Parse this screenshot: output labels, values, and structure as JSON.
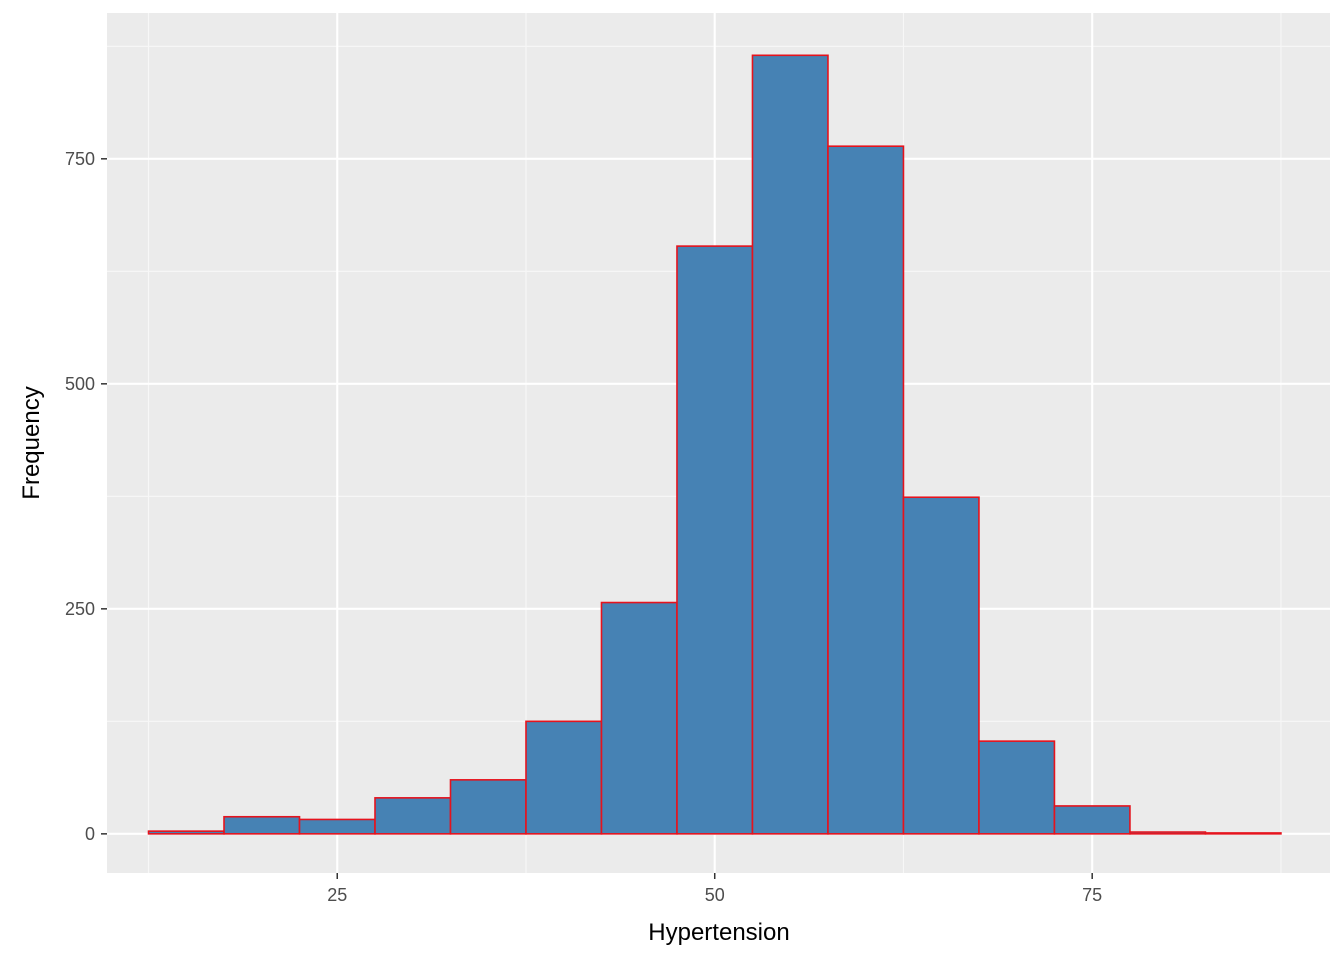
{
  "chart_data": {
    "type": "bar",
    "title": "",
    "xlabel": "Hypertension",
    "ylabel": "Frequency",
    "xlim": [
      9.75,
      90.75
    ],
    "ylim": [
      -43.5,
      912
    ],
    "x_ticks": [
      25,
      50,
      75
    ],
    "x_tick_labels": [
      "25",
      "50",
      "75"
    ],
    "y_ticks": [
      0,
      250,
      500,
      750
    ],
    "y_tick_labels": [
      "0",
      "250",
      "500",
      "750"
    ],
    "x_minor_ticks": [
      12.5,
      37.5,
      62.5,
      87.5
    ],
    "y_minor_ticks": [
      125,
      375,
      625,
      875
    ],
    "bins": [
      {
        "x0": 12.5,
        "x1": 17.5,
        "count": 3
      },
      {
        "x0": 17.5,
        "x1": 22.5,
        "count": 19
      },
      {
        "x0": 22.5,
        "x1": 27.5,
        "count": 16
      },
      {
        "x0": 27.5,
        "x1": 32.5,
        "count": 40
      },
      {
        "x0": 32.5,
        "x1": 37.5,
        "count": 60
      },
      {
        "x0": 37.5,
        "x1": 42.5,
        "count": 125
      },
      {
        "x0": 42.5,
        "x1": 47.5,
        "count": 257
      },
      {
        "x0": 47.5,
        "x1": 52.5,
        "count": 653
      },
      {
        "x0": 52.5,
        "x1": 57.5,
        "count": 865
      },
      {
        "x0": 57.5,
        "x1": 62.5,
        "count": 764
      },
      {
        "x0": 62.5,
        "x1": 67.5,
        "count": 374
      },
      {
        "x0": 67.5,
        "x1": 72.5,
        "count": 103
      },
      {
        "x0": 72.5,
        "x1": 77.5,
        "count": 31
      },
      {
        "x0": 77.5,
        "x1": 82.5,
        "count": 2
      },
      {
        "x0": 82.5,
        "x1": 87.5,
        "count": 1
      }
    ],
    "grid": true,
    "legend": "none",
    "colors": {
      "panel_background": "#EBEBEB",
      "grid_major": "#FFFFFF",
      "grid_minor": "#F7F7F7",
      "bar_fill": "#4682B4",
      "bar_outline": "#E5131D"
    }
  }
}
